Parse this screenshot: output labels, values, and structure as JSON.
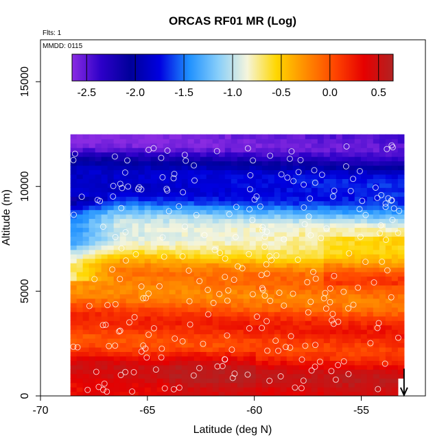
{
  "chart_data": {
    "type": "heatmap",
    "title": "ORCAS RF01 MR (Log)",
    "xlabel": "Latitude (deg N)",
    "ylabel": "Altitude (m)",
    "xlim": [
      -70,
      -52
    ],
    "ylim": [
      0,
      17000
    ],
    "x_ticks": [
      -70,
      -65,
      -60,
      -55
    ],
    "y_ticks": [
      0,
      5000,
      10000,
      15000
    ],
    "annotations": [
      "Flts: 1",
      "MMDD: 0115"
    ],
    "colorbar": {
      "range": [
        -2.65,
        0.65
      ],
      "ticks": [
        -2.5,
        -2.0,
        -1.5,
        -1.0,
        -0.5,
        0.0,
        0.5
      ],
      "tick_labels": [
        "-2.5",
        "-2.0",
        "-1.5",
        "-1.0",
        "-0.5",
        "0.0",
        "0.5"
      ],
      "colors": [
        "#8a2be2",
        "#2c00c8",
        "#00009a",
        "#0000e0",
        "#1e90ff",
        "#87cefa",
        "#f5f5dc",
        "#ffd700",
        "#ff8c00",
        "#ff4500",
        "#e60000",
        "#b22222"
      ]
    },
    "data_extent": {
      "lat_range": [
        -68.6,
        -53
      ],
      "alt_range": [
        0,
        12700
      ]
    },
    "grid": false,
    "marker": "arrow at latitude -53.0 pointing down to altitude 0"
  }
}
